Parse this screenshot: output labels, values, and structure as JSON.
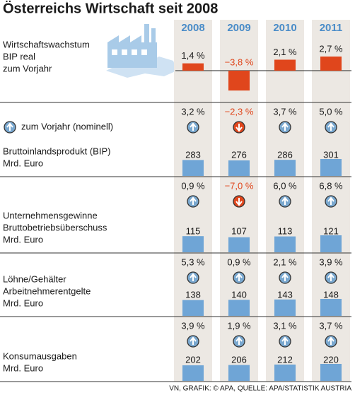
{
  "title": "Österreichs Wirtschaft seit 2008",
  "years": [
    "2008",
    "2009",
    "2010",
    "2011"
  ],
  "growth": {
    "label_lines": [
      "Wirtschaftswachstum",
      "BIP real",
      "zum Vorjahr"
    ],
    "values": [
      1.4,
      -3.8,
      2.1,
      2.7
    ],
    "value_labels": [
      "1,4 %",
      "−3,8 %",
      "2,1 %",
      "2,7 %"
    ]
  },
  "change_legend": "zum Vorjahr (nominell)",
  "sections": [
    {
      "label_lines": [
        "Bruttoinlandsprodukt (BIP)",
        "Mrd. Euro"
      ],
      "changes": [
        3.2,
        -2.3,
        3.7,
        5.0
      ],
      "change_labels": [
        "3,2 %",
        "−2,3 %",
        "3,7 %",
        "5,0 %"
      ],
      "values": [
        283,
        276,
        286,
        301
      ]
    },
    {
      "label_lines": [
        "Unternehmensgewinne",
        "Bruttobetriebsüberschuss",
        "Mrd. Euro"
      ],
      "changes": [
        0.9,
        -7.0,
        6.0,
        6.8
      ],
      "change_labels": [
        "0,9 %",
        "−7,0 %",
        "6,0 %",
        "6,8 %"
      ],
      "values": [
        115,
        107,
        113,
        121
      ]
    },
    {
      "label_lines": [
        "Löhne/Gehälter",
        "Arbeitnehmerentgelte",
        "Mrd. Euro"
      ],
      "changes": [
        5.3,
        0.9,
        2.1,
        3.9
      ],
      "change_labels": [
        "5,3 %",
        "0,9 %",
        "2,1 %",
        "3,9 %"
      ],
      "values": [
        138,
        140,
        143,
        148
      ]
    },
    {
      "label_lines": [
        "Konsumausgaben",
        "Mrd. Euro"
      ],
      "changes": [
        3.9,
        1.9,
        3.1,
        3.7
      ],
      "change_labels": [
        "3,9 %",
        "1,9 %",
        "3,1 %",
        "3,7 %"
      ],
      "values": [
        202,
        206,
        212,
        220
      ]
    }
  ],
  "source": "VN, GRAFIK: © APA, QUELLE: APA/STATISTIK AUSTRIA"
}
